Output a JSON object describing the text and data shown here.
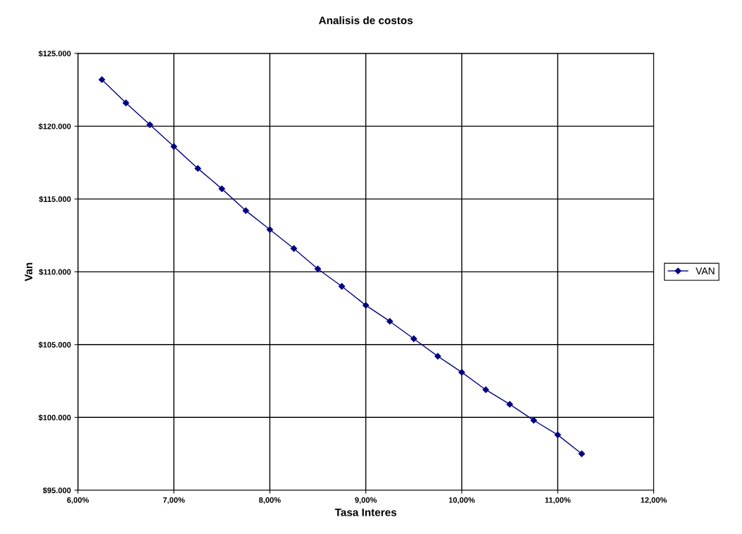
{
  "chart_data": {
    "type": "line",
    "title": "Analisis de costos",
    "xlabel": "Tasa Interes",
    "ylabel": "Van",
    "x": [
      6.25,
      6.5,
      6.75,
      7.0,
      7.25,
      7.5,
      7.75,
      8.0,
      8.25,
      8.5,
      8.75,
      9.0,
      9.25,
      9.5,
      9.75,
      10.0,
      10.25,
      10.5,
      10.75,
      11.0,
      11.25
    ],
    "series": [
      {
        "name": "VAN",
        "color": "#000080",
        "values": [
          123200,
          121600,
          120100,
          118600,
          117100,
          115700,
          114200,
          112900,
          111600,
          110200,
          109000,
          107700,
          106600,
          105400,
          104200,
          103100,
          101900,
          100900,
          99800,
          98800,
          97500
        ]
      }
    ],
    "xlim": [
      6,
      12
    ],
    "xticks": [
      {
        "value": 6,
        "label": "6,00%"
      },
      {
        "value": 7,
        "label": "7,00%"
      },
      {
        "value": 8,
        "label": "8,00%"
      },
      {
        "value": 9,
        "label": "9,00%"
      },
      {
        "value": 10,
        "label": "10,00%"
      },
      {
        "value": 11,
        "label": "11,00%"
      },
      {
        "value": 12,
        "label": "12,00%"
      }
    ],
    "ylim": [
      95000,
      125000
    ],
    "yticks": [
      {
        "value": 95000,
        "label": "$95.000"
      },
      {
        "value": 100000,
        "label": "$100.000"
      },
      {
        "value": 105000,
        "label": "$105.000"
      },
      {
        "value": 110000,
        "label": "$110.000"
      },
      {
        "value": 115000,
        "label": "$115.000"
      },
      {
        "value": 120000,
        "label": "$120.000"
      },
      {
        "value": 125000,
        "label": "$125.000"
      }
    ],
    "grid": true,
    "legend": "right",
    "marker": "diamond",
    "line_style": "solid"
  }
}
